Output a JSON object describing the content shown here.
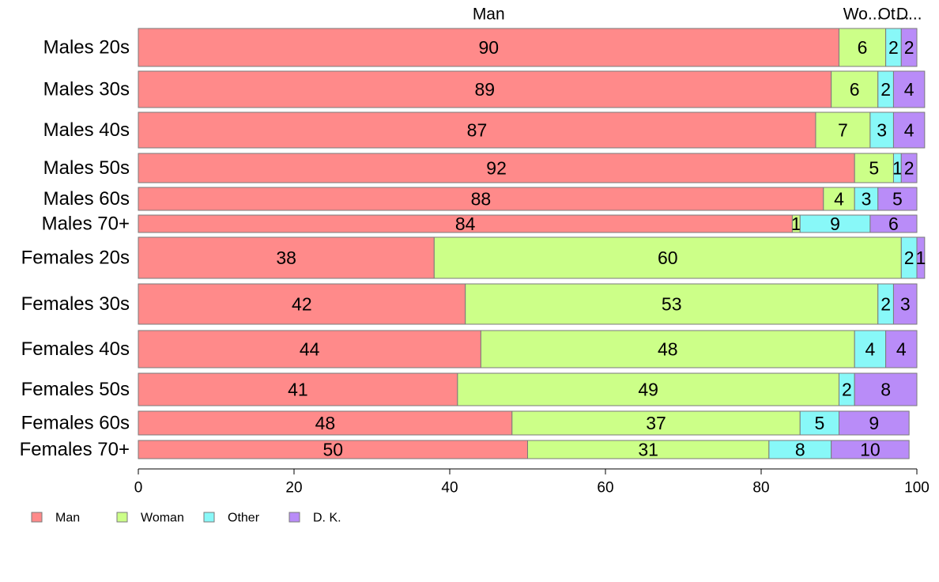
{
  "chart_data": {
    "type": "bar",
    "orientation": "horizontal",
    "stacked": true,
    "categories": [
      "Males 20s",
      "Males 30s",
      "Males 40s",
      "Males 50s",
      "Males 60s",
      "Males 70+",
      "Females 20s",
      "Females 30s",
      "Females 40s",
      "Females 50s",
      "Females 60s",
      "Females 70+"
    ],
    "series": [
      {
        "name": "Man",
        "color": "#ff8a8a",
        "values": [
          90,
          89,
          87,
          92,
          88,
          84,
          38,
          42,
          44,
          41,
          48,
          50
        ]
      },
      {
        "name": "Woman",
        "color": "#ccff88",
        "values": [
          6,
          6,
          7,
          5,
          4,
          1,
          60,
          53,
          48,
          49,
          37,
          31
        ]
      },
      {
        "name": "Other",
        "color": "#88f8f8",
        "values": [
          2,
          2,
          3,
          1,
          3,
          9,
          2,
          2,
          4,
          2,
          5,
          8
        ]
      },
      {
        "name": "D. K.",
        "color": "#b98cf8",
        "values": [
          2,
          4,
          4,
          2,
          5,
          6,
          1,
          3,
          4,
          8,
          9,
          10
        ]
      }
    ],
    "top_labels": [
      "Man",
      "Wo...",
      "Ot...",
      "D..."
    ],
    "xlim": [
      0,
      100
    ],
    "xticks": [
      0,
      20,
      40,
      60,
      80,
      100
    ],
    "legend_position": "bottom-left",
    "grid": false
  }
}
